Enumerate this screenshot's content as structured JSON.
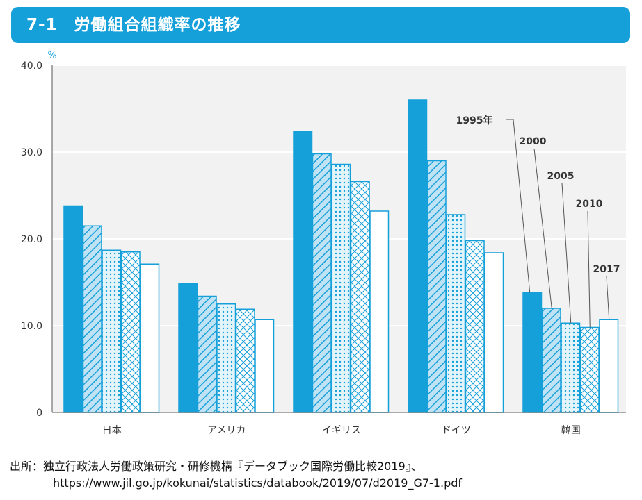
{
  "title": "7-1　労働組合組織率の推移",
  "chart_data": {
    "type": "bar",
    "unit": "%",
    "categories": [
      "日本",
      "アメリカ",
      "イギリス",
      "ドイツ",
      "韓国"
    ],
    "series": [
      {
        "name": "1995年",
        "values": [
          23.8,
          14.9,
          32.4,
          36.0,
          13.8
        ]
      },
      {
        "name": "2000",
        "values": [
          21.5,
          13.4,
          29.8,
          29.0,
          12.0
        ]
      },
      {
        "name": "2005",
        "values": [
          18.7,
          12.5,
          28.6,
          22.8,
          10.3
        ]
      },
      {
        "name": "2010",
        "values": [
          18.5,
          11.9,
          26.6,
          19.8,
          9.8
        ]
      },
      {
        "name": "2017",
        "values": [
          17.1,
          10.7,
          23.2,
          18.4,
          10.7
        ]
      }
    ],
    "ylim": [
      0,
      40
    ],
    "yticks": [
      "0",
      "10.0",
      "20.0",
      "30.0",
      "40.0"
    ],
    "grid": true,
    "legend_placement": "annotated on 韓国 bars",
    "colors": {
      "accent": "#16a0da",
      "plot_bg": "#f2f2f2"
    }
  },
  "source": {
    "line1": "出所：独立行政法人労働政策研究・研修機構『データブック国際労働比較2019』、",
    "line2": "https://www.jil.go.jp/kokunai/statistics/databook/2019/07/d2019_G7-1.pdf"
  }
}
